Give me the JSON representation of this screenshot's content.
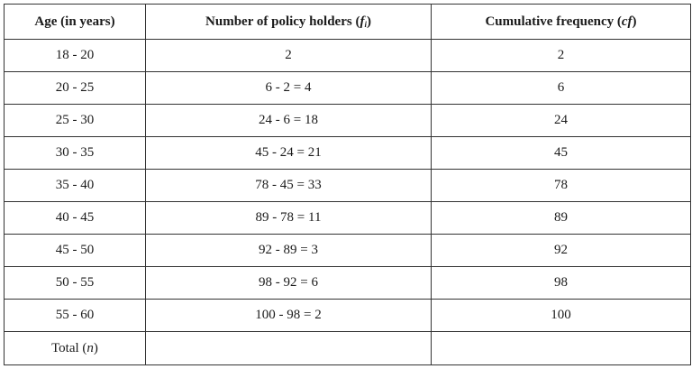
{
  "headers": {
    "age": "Age (in years)",
    "holders_prefix": "Number of policy holders (",
    "holders_var": "f",
    "holders_sub": "i",
    "holders_suffix": ")",
    "cf_prefix": "Cumulative frequency (",
    "cf_var": "cf",
    "cf_suffix": ")"
  },
  "rows": [
    {
      "age": "18 - 20",
      "holders": "2",
      "cf": "2"
    },
    {
      "age": "20 - 25",
      "holders": "6 - 2 = 4",
      "cf": "6"
    },
    {
      "age": "25 - 30",
      "holders": "24 - 6 = 18",
      "cf": "24"
    },
    {
      "age": "30 - 35",
      "holders": "45 - 24 = 21",
      "cf": "45"
    },
    {
      "age": "35 - 40",
      "holders": "78 - 45 = 33",
      "cf": "78"
    },
    {
      "age": "40 - 45",
      "holders": "89 - 78 = 11",
      "cf": "89"
    },
    {
      "age": "45 - 50",
      "holders": "92 - 89 = 3",
      "cf": "92"
    },
    {
      "age": "50 - 55",
      "holders": "98 - 92 = 6",
      "cf": "98"
    },
    {
      "age": "55 - 60",
      "holders": "100 - 98 = 2",
      "cf": "100"
    }
  ],
  "total": {
    "label_prefix": "Total (",
    "label_var": "n",
    "label_suffix": ")",
    "holders": "",
    "cf": ""
  }
}
